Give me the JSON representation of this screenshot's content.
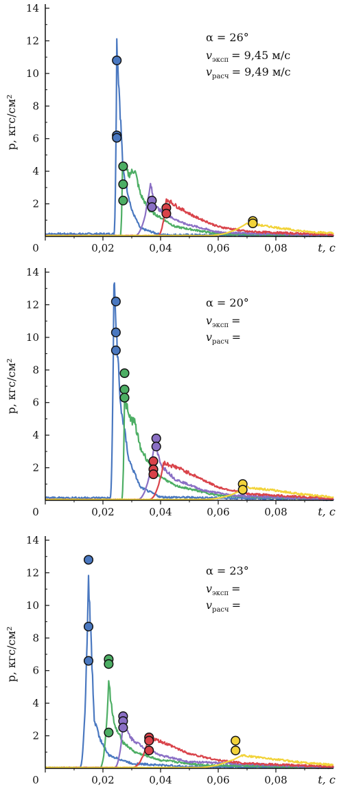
{
  "chart_data": [
    {
      "type": "line",
      "xlabel": "t, с",
      "ylabel": "p, кгс/см²",
      "xlim": [
        0,
        0.1
      ],
      "ylim": [
        0,
        14
      ],
      "x_ticks": [
        "0",
        "0,02",
        "0,04",
        "0,06",
        "0,08"
      ],
      "y_ticks": [
        "2",
        "4",
        "6",
        "8",
        "10",
        "12",
        "14"
      ],
      "annotation": {
        "alpha": "α = 26°",
        "v_exp_label": "v",
        "v_exp_sub": "эксп",
        "v_exp_value": "= 9,45 м/с",
        "v_calc_label": "v",
        "v_calc_sub": "расч",
        "v_calc_value": "= 9,49 м/с"
      },
      "series": [
        {
          "color": "#4a78c0",
          "onset": 0.0238,
          "peak_t": 0.0248,
          "peak": 12.0,
          "baseline": 0.15,
          "tail": [
            [
              0.027,
              4.0
            ],
            [
              0.03,
              1.6
            ],
            [
              0.033,
              0.5
            ],
            [
              0.04,
              0.1
            ],
            [
              0.1,
              0.05
            ]
          ]
        },
        {
          "color": "#4dae64",
          "onset": 0.026,
          "peak_t": 0.0268,
          "peak": 4.4,
          "baseline": 0.05,
          "tail": [
            [
              0.029,
              3.8
            ],
            [
              0.031,
              4.1
            ],
            [
              0.033,
              2.6
            ],
            [
              0.036,
              1.6
            ],
            [
              0.045,
              0.6
            ],
            [
              0.06,
              0.15
            ],
            [
              0.1,
              0.05
            ]
          ]
        },
        {
          "color": "#8a6fc4",
          "onset": 0.031,
          "peak_t": 0.0365,
          "peak": 3.2,
          "baseline": 0.05,
          "tail": [
            [
              0.038,
              1.9
            ],
            [
              0.041,
              1.4
            ],
            [
              0.048,
              0.8
            ],
            [
              0.06,
              0.25
            ],
            [
              0.1,
              0.05
            ]
          ]
        },
        {
          "color": "#d9434a",
          "onset": 0.039,
          "peak_t": 0.042,
          "peak": 2.3,
          "baseline": 0.05,
          "tail": [
            [
              0.046,
              1.8
            ],
            [
              0.052,
              1.2
            ],
            [
              0.06,
              0.6
            ],
            [
              0.07,
              0.3
            ],
            [
              0.1,
              0.1
            ]
          ]
        },
        {
          "color": "#f2d33a",
          "onset": 0.056,
          "peak_t": 0.07,
          "peak": 0.8,
          "baseline": 0.05,
          "tail": [
            [
              0.08,
              0.55
            ],
            [
              0.09,
              0.3
            ],
            [
              0.1,
              0.2
            ]
          ]
        }
      ],
      "markers": [
        {
          "color": "#4a78c0",
          "points": [
            [
              0.0248,
              10.8
            ],
            [
              0.0248,
              6.2
            ],
            [
              0.0248,
              6.05
            ]
          ]
        },
        {
          "color": "#4dae64",
          "points": [
            [
              0.027,
              4.3
            ],
            [
              0.027,
              3.2
            ],
            [
              0.027,
              2.2
            ]
          ]
        },
        {
          "color": "#8a6fc4",
          "points": [
            [
              0.037,
              2.2
            ],
            [
              0.037,
              1.8
            ]
          ]
        },
        {
          "color": "#d9434a",
          "points": [
            [
              0.042,
              1.75
            ],
            [
              0.042,
              1.4
            ]
          ]
        },
        {
          "color": "#f2d33a",
          "points": [
            [
              0.072,
              0.95
            ],
            [
              0.072,
              0.8
            ]
          ]
        }
      ]
    },
    {
      "type": "line",
      "xlabel": "t, с",
      "ylabel": "p, кгс/см²",
      "xlim": [
        0,
        0.1
      ],
      "ylim": [
        0,
        14
      ],
      "x_ticks": [
        "0",
        "0,02",
        "0,04",
        "0,06",
        "0,08"
      ],
      "y_ticks": [
        "2",
        "4",
        "6",
        "8",
        "10",
        "12",
        "14"
      ],
      "annotation": {
        "alpha": "α = 20°",
        "v_exp_label": "v",
        "v_exp_sub": "эксп",
        "v_exp_value": "=",
        "v_calc_label": "v",
        "v_calc_sub": "расч",
        "v_calc_value": "="
      },
      "series": [
        {
          "color": "#4a78c0",
          "onset": 0.0225,
          "peak_t": 0.0238,
          "peak": 13.3,
          "baseline": 0.15,
          "tail": [
            [
              0.026,
              6.0
            ],
            [
              0.029,
              2.5
            ],
            [
              0.033,
              0.8
            ],
            [
              0.04,
              0.2
            ],
            [
              0.1,
              0.05
            ]
          ]
        },
        {
          "color": "#4dae64",
          "onset": 0.0265,
          "peak_t": 0.0275,
          "peak": 6.4,
          "baseline": 0.05,
          "tail": [
            [
              0.029,
              5.1
            ],
            [
              0.031,
              4.8
            ],
            [
              0.033,
              3.2
            ],
            [
              0.038,
              1.7
            ],
            [
              0.045,
              0.9
            ],
            [
              0.06,
              0.3
            ],
            [
              0.1,
              0.05
            ]
          ]
        },
        {
          "color": "#8a6fc4",
          "onset": 0.032,
          "peak_t": 0.038,
          "peak": 3.5,
          "baseline": 0.05,
          "tail": [
            [
              0.04,
              2.2
            ],
            [
              0.045,
              1.3
            ],
            [
              0.055,
              0.6
            ],
            [
              0.065,
              0.3
            ],
            [
              0.1,
              0.05
            ]
          ]
        },
        {
          "color": "#d9434a",
          "onset": 0.036,
          "peak_t": 0.041,
          "peak": 2.3,
          "baseline": 0.05,
          "tail": [
            [
              0.046,
              2.0
            ],
            [
              0.052,
              1.5
            ],
            [
              0.06,
              0.8
            ],
            [
              0.07,
              0.4
            ],
            [
              0.1,
              0.1
            ]
          ]
        },
        {
          "color": "#f2d33a",
          "onset": 0.054,
          "peak_t": 0.07,
          "peak": 0.8,
          "baseline": 0.05,
          "tail": [
            [
              0.08,
              0.6
            ],
            [
              0.09,
              0.35
            ],
            [
              0.1,
              0.2
            ]
          ]
        }
      ],
      "markers": [
        {
          "color": "#4a78c0",
          "points": [
            [
              0.0245,
              12.2
            ],
            [
              0.0245,
              10.3
            ],
            [
              0.0245,
              9.2
            ]
          ]
        },
        {
          "color": "#4dae64",
          "points": [
            [
              0.0275,
              7.8
            ],
            [
              0.0275,
              6.8
            ],
            [
              0.0275,
              6.3
            ]
          ]
        },
        {
          "color": "#8a6fc4",
          "points": [
            [
              0.0385,
              3.8
            ],
            [
              0.0385,
              3.3
            ]
          ]
        },
        {
          "color": "#d9434a",
          "points": [
            [
              0.0375,
              2.4
            ],
            [
              0.0375,
              1.9
            ],
            [
              0.0375,
              1.6
            ]
          ]
        },
        {
          "color": "#f2d33a",
          "points": [
            [
              0.0685,
              1.0
            ],
            [
              0.0685,
              0.65
            ]
          ]
        }
      ]
    },
    {
      "type": "line",
      "xlabel": "t, с",
      "ylabel": "p, кгс/см²",
      "xlim": [
        0,
        0.1
      ],
      "ylim": [
        0,
        14
      ],
      "x_ticks": [
        "0",
        "0,02",
        "0,04",
        "0,06",
        "0,08"
      ],
      "y_ticks": [
        "2",
        "4",
        "6",
        "8",
        "10",
        "12",
        "14"
      ],
      "annotation": {
        "alpha": "α = 23°",
        "v_exp_label": "v",
        "v_exp_sub": "эксп",
        "v_exp_value": "=",
        "v_calc_label": "v",
        "v_calc_sub": "расч",
        "v_calc_value": "="
      },
      "series": [
        {
          "color": "#4a78c0",
          "onset": 0.012,
          "peak_t": 0.015,
          "peak": 11.5,
          "baseline": 0.05,
          "tail": [
            [
              0.017,
              3.0
            ],
            [
              0.019,
              1.8
            ],
            [
              0.022,
              0.8
            ],
            [
              0.03,
              0.3
            ],
            [
              0.05,
              0.1
            ],
            [
              0.1,
              0.05
            ]
          ]
        },
        {
          "color": "#4dae64",
          "onset": 0.019,
          "peak_t": 0.022,
          "peak": 5.2,
          "baseline": 0.05,
          "tail": [
            [
              0.024,
              2.6
            ],
            [
              0.027,
              1.6
            ],
            [
              0.031,
              1.0
            ],
            [
              0.04,
              0.5
            ],
            [
              0.055,
              0.2
            ],
            [
              0.1,
              0.05
            ]
          ]
        },
        {
          "color": "#8a6fc4",
          "onset": 0.024,
          "peak_t": 0.027,
          "peak": 2.7,
          "baseline": 0.05,
          "tail": [
            [
              0.03,
              1.8
            ],
            [
              0.034,
              1.3
            ],
            [
              0.04,
              0.8
            ],
            [
              0.05,
              0.4
            ],
            [
              0.1,
              0.05
            ]
          ]
        },
        {
          "color": "#d9434a",
          "onset": 0.03,
          "peak_t": 0.036,
          "peak": 1.9,
          "baseline": 0.05,
          "tail": [
            [
              0.042,
              1.5
            ],
            [
              0.05,
              0.9
            ],
            [
              0.06,
              0.5
            ],
            [
              0.07,
              0.3
            ],
            [
              0.1,
              0.1
            ]
          ]
        },
        {
          "color": "#f2d33a",
          "onset": 0.052,
          "peak_t": 0.068,
          "peak": 0.8,
          "baseline": 0.05,
          "tail": [
            [
              0.08,
              0.55
            ],
            [
              0.09,
              0.35
            ],
            [
              0.1,
              0.2
            ]
          ]
        }
      ],
      "markers": [
        {
          "color": "#4a78c0",
          "points": [
            [
              0.015,
              12.8
            ],
            [
              0.015,
              8.7
            ],
            [
              0.015,
              6.6
            ]
          ]
        },
        {
          "color": "#4dae64",
          "points": [
            [
              0.022,
              6.7
            ],
            [
              0.022,
              6.4
            ],
            [
              0.022,
              2.2
            ]
          ]
        },
        {
          "color": "#8a6fc4",
          "points": [
            [
              0.027,
              3.2
            ],
            [
              0.027,
              2.9
            ],
            [
              0.027,
              2.5
            ]
          ]
        },
        {
          "color": "#d9434a",
          "points": [
            [
              0.036,
              1.9
            ],
            [
              0.036,
              1.7
            ],
            [
              0.036,
              1.1
            ]
          ]
        },
        {
          "color": "#f2d33a",
          "points": [
            [
              0.066,
              1.7
            ],
            [
              0.066,
              1.1
            ]
          ]
        }
      ]
    }
  ]
}
